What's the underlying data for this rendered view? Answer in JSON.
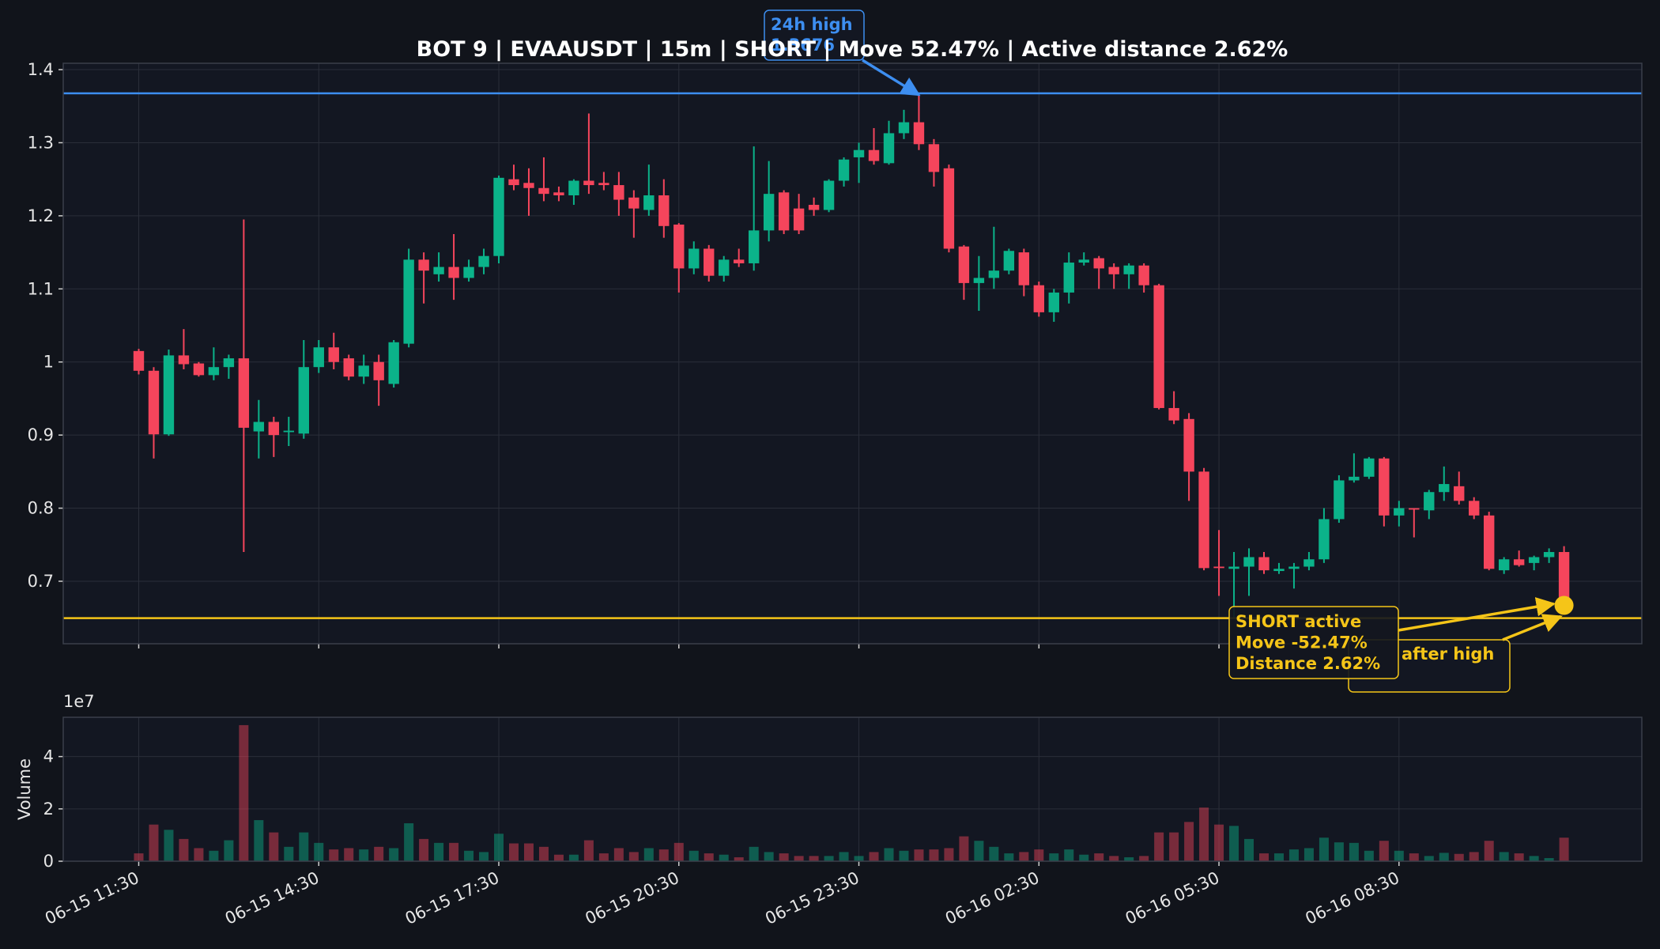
{
  "chart_data": {
    "type": "candlestick",
    "title": "BOT 9 | EVAAUSDT | 15m | SHORT | Move 52.47% | Active distance 2.62%",
    "x": [
      "06-15 11:30",
      "06-15 11:45",
      "06-15 12:00",
      "06-15 12:15",
      "06-15 12:30",
      "06-15 12:45",
      "06-15 13:00",
      "06-15 13:15",
      "06-15 13:30",
      "06-15 13:45",
      "06-15 14:00",
      "06-15 14:15",
      "06-15 14:30",
      "06-15 14:45",
      "06-15 15:00",
      "06-15 15:15",
      "06-15 15:30",
      "06-15 15:45",
      "06-15 16:00",
      "06-15 16:15",
      "06-15 16:30",
      "06-15 16:45",
      "06-15 17:00",
      "06-15 17:15",
      "06-15 17:30",
      "06-15 17:45",
      "06-15 18:00",
      "06-15 18:15",
      "06-15 18:30",
      "06-15 18:45",
      "06-15 19:00",
      "06-15 19:15",
      "06-15 19:30",
      "06-15 19:45",
      "06-15 20:00",
      "06-15 20:15",
      "06-15 20:30",
      "06-15 20:45",
      "06-15 21:00",
      "06-15 21:15",
      "06-15 21:30",
      "06-15 21:45",
      "06-15 22:00",
      "06-15 22:15",
      "06-15 22:30",
      "06-15 22:45",
      "06-15 23:00",
      "06-15 23:15",
      "06-15 23:30",
      "06-15 23:45",
      "06-16 00:00",
      "06-16 00:15",
      "06-16 00:30",
      "06-16 00:45",
      "06-16 01:00",
      "06-16 01:15",
      "06-16 01:30",
      "06-16 01:45",
      "06-16 02:00",
      "06-16 02:15",
      "06-16 02:30",
      "06-16 02:45",
      "06-16 03:00",
      "06-16 03:15",
      "06-16 03:30",
      "06-16 03:45",
      "06-16 04:00",
      "06-16 04:15",
      "06-16 04:30",
      "06-16 04:45",
      "06-16 05:00",
      "06-16 05:15",
      "06-16 05:30",
      "06-16 05:45",
      "06-16 06:00",
      "06-16 06:15",
      "06-16 06:30",
      "06-16 06:45",
      "06-16 07:00",
      "06-16 07:15",
      "06-16 07:30",
      "06-16 07:45",
      "06-16 08:00",
      "06-16 08:15",
      "06-16 08:30",
      "06-16 08:45",
      "06-16 09:00",
      "06-16 09:15",
      "06-16 09:30",
      "06-16 09:45",
      "06-16 10:00",
      "06-16 10:15",
      "06-16 10:30",
      "06-16 10:45",
      "06-16 11:00",
      "06-16 11:15"
    ],
    "open": [
      1.015,
      0.988,
      0.901,
      1.009,
      0.998,
      0.982,
      0.993,
      1.005,
      0.905,
      0.918,
      0.904,
      0.902,
      0.993,
      1.02,
      1.005,
      0.98,
      1.0,
      0.97,
      1.025,
      1.14,
      1.12,
      1.13,
      1.115,
      1.13,
      1.145,
      1.25,
      1.245,
      1.238,
      1.232,
      1.228,
      1.248,
      1.245,
      1.242,
      1.225,
      1.208,
      1.228,
      1.188,
      1.128,
      1.155,
      1.118,
      1.14,
      1.135,
      1.18,
      1.232,
      1.21,
      1.215,
      1.208,
      1.248,
      1.28,
      1.29,
      1.272,
      1.313,
      1.328,
      1.298,
      1.265,
      1.158,
      1.108,
      1.115,
      1.125,
      1.15,
      1.105,
      1.068,
      1.095,
      1.136,
      1.142,
      1.13,
      1.12,
      1.132,
      1.105,
      0.937,
      0.922,
      0.85,
      0.72,
      0.717,
      0.72,
      0.733,
      0.714,
      0.717,
      0.72,
      0.73,
      0.785,
      0.838,
      0.843,
      0.868,
      0.79,
      0.8,
      0.797,
      0.822,
      0.83,
      0.81,
      0.79,
      0.715,
      0.73,
      0.725,
      0.733,
      0.74
    ],
    "high": [
      1.018,
      0.993,
      1.017,
      1.045,
      1.0,
      1.02,
      1.01,
      1.195,
      0.948,
      0.925,
      0.925,
      1.03,
      1.03,
      1.04,
      1.01,
      1.01,
      1.01,
      1.03,
      1.155,
      1.15,
      1.15,
      1.175,
      1.14,
      1.155,
      1.255,
      1.27,
      1.265,
      1.28,
      1.24,
      1.25,
      1.34,
      1.26,
      1.26,
      1.235,
      1.27,
      1.25,
      1.19,
      1.165,
      1.16,
      1.145,
      1.155,
      1.295,
      1.275,
      1.235,
      1.23,
      1.225,
      1.25,
      1.28,
      1.3,
      1.32,
      1.33,
      1.345,
      1.3676,
      1.305,
      1.27,
      1.16,
      1.145,
      1.185,
      1.155,
      1.155,
      1.11,
      1.1,
      1.15,
      1.15,
      1.145,
      1.135,
      1.135,
      1.135,
      1.107,
      0.96,
      0.93,
      0.855,
      0.77,
      0.74,
      0.745,
      0.74,
      0.725,
      0.725,
      0.74,
      0.8,
      0.845,
      0.875,
      0.87,
      0.87,
      0.81,
      0.8,
      0.825,
      0.857,
      0.85,
      0.815,
      0.795,
      0.733,
      0.742,
      0.735,
      0.745,
      0.748
    ],
    "low": [
      0.983,
      0.868,
      0.899,
      0.99,
      0.98,
      0.975,
      0.977,
      0.74,
      0.868,
      0.87,
      0.885,
      0.895,
      0.985,
      0.99,
      0.975,
      0.97,
      0.94,
      0.965,
      1.02,
      1.08,
      1.11,
      1.085,
      1.11,
      1.12,
      1.135,
      1.235,
      1.2,
      1.22,
      1.22,
      1.215,
      1.23,
      1.235,
      1.2,
      1.17,
      1.2,
      1.17,
      1.095,
      1.12,
      1.11,
      1.11,
      1.13,
      1.125,
      1.165,
      1.175,
      1.175,
      1.2,
      1.205,
      1.24,
      1.245,
      1.27,
      1.27,
      1.305,
      1.29,
      1.24,
      1.15,
      1.085,
      1.07,
      1.1,
      1.12,
      1.09,
      1.062,
      1.055,
      1.08,
      1.132,
      1.1,
      1.1,
      1.1,
      1.095,
      0.935,
      0.915,
      0.81,
      0.715,
      0.68,
      0.65,
      0.68,
      0.71,
      0.71,
      0.69,
      0.715,
      0.725,
      0.78,
      0.835,
      0.84,
      0.775,
      0.775,
      0.76,
      0.785,
      0.81,
      0.805,
      0.785,
      0.715,
      0.71,
      0.72,
      0.715,
      0.725,
      0.665
    ],
    "close": [
      0.988,
      0.901,
      1.009,
      0.997,
      0.982,
      0.993,
      1.005,
      0.91,
      0.918,
      0.9,
      0.906,
      0.993,
      1.02,
      1.0,
      0.98,
      0.995,
      0.975,
      1.027,
      1.14,
      1.125,
      1.13,
      1.115,
      1.13,
      1.145,
      1.252,
      1.242,
      1.238,
      1.23,
      1.228,
      1.248,
      1.242,
      1.242,
      1.222,
      1.21,
      1.228,
      1.186,
      1.128,
      1.155,
      1.118,
      1.14,
      1.135,
      1.18,
      1.23,
      1.18,
      1.18,
      1.208,
      1.248,
      1.277,
      1.29,
      1.275,
      1.313,
      1.328,
      1.298,
      1.26,
      1.155,
      1.108,
      1.115,
      1.125,
      1.152,
      1.105,
      1.068,
      1.095,
      1.136,
      1.14,
      1.128,
      1.12,
      1.132,
      1.105,
      0.937,
      0.92,
      0.85,
      0.718,
      0.718,
      0.72,
      0.733,
      0.715,
      0.717,
      0.72,
      0.73,
      0.785,
      0.838,
      0.843,
      0.868,
      0.79,
      0.8,
      0.798,
      0.822,
      0.833,
      0.81,
      0.79,
      0.717,
      0.73,
      0.722,
      0.733,
      0.74,
      0.667
    ],
    "volume": [
      3000000,
      14000000,
      12000000,
      8500000,
      5000000,
      4000000,
      8000000,
      52000000,
      15700000,
      11000000,
      5500000,
      11000000,
      7000000,
      4500000,
      5000000,
      4500000,
      5500000,
      5000000,
      14500000,
      8500000,
      7000000,
      7000000,
      4000000,
      3500000,
      10500000,
      6800000,
      6800000,
      5500000,
      2500000,
      2500000,
      8000000,
      3000000,
      5000000,
      3500000,
      5000000,
      4500000,
      7000000,
      4000000,
      3000000,
      2500000,
      1500000,
      5500000,
      3500000,
      3000000,
      2000000,
      2000000,
      2000000,
      3500000,
      2000000,
      3500000,
      5000000,
      4000000,
      4500000,
      4500000,
      5000000,
      9500000,
      7800000,
      5500000,
      3000000,
      3500000,
      4500000,
      3000000,
      4500000,
      2500000,
      3000000,
      2000000,
      1500000,
      2000000,
      11000000,
      11000000,
      15000000,
      20500000,
      14000000,
      13500000,
      8500000,
      3000000,
      3000000,
      4500000,
      5000000,
      9000000,
      7200000,
      7000000,
      4000000,
      7800000,
      4000000,
      3000000,
      2000000,
      3200000,
      2800000,
      3500000,
      7800000,
      3500000,
      3000000,
      2000000,
      1200000,
      9000000
    ],
    "up_color": "#0bb38a",
    "down_color": "#f5455c",
    "ylim": [
      0.6145,
      1.4087
    ],
    "yticks": [
      0.7,
      0.8,
      0.9,
      1,
      1.1,
      1.2,
      1.3,
      1.4
    ],
    "xticks": [
      "06-15 11:30",
      "06-15 14:30",
      "06-15 17:30",
      "06-15 20:30",
      "06-15 23:30",
      "06-16 02:30",
      "06-16 05:30",
      "06-16 08:30"
    ],
    "volume_label": "Volume",
    "volume_offset_label": "1e7",
    "volume_ylim": [
      0,
      55000000
    ],
    "volume_yticks": [
      0,
      {
        "value": 20000000,
        "label": "2"
      },
      {
        "value": 40000000,
        "label": "4"
      }
    ],
    "grid": true,
    "high_line": 1.3676,
    "high_line_color": "#3d8ef0",
    "high_label": "24h high",
    "stop_line": 0.6495,
    "stop_line_color": "#f5c518",
    "status_labels": [
      "SHORT active",
      "Move -52.47%",
      "Distance 2.62%"
    ],
    "note_label": "after high"
  }
}
